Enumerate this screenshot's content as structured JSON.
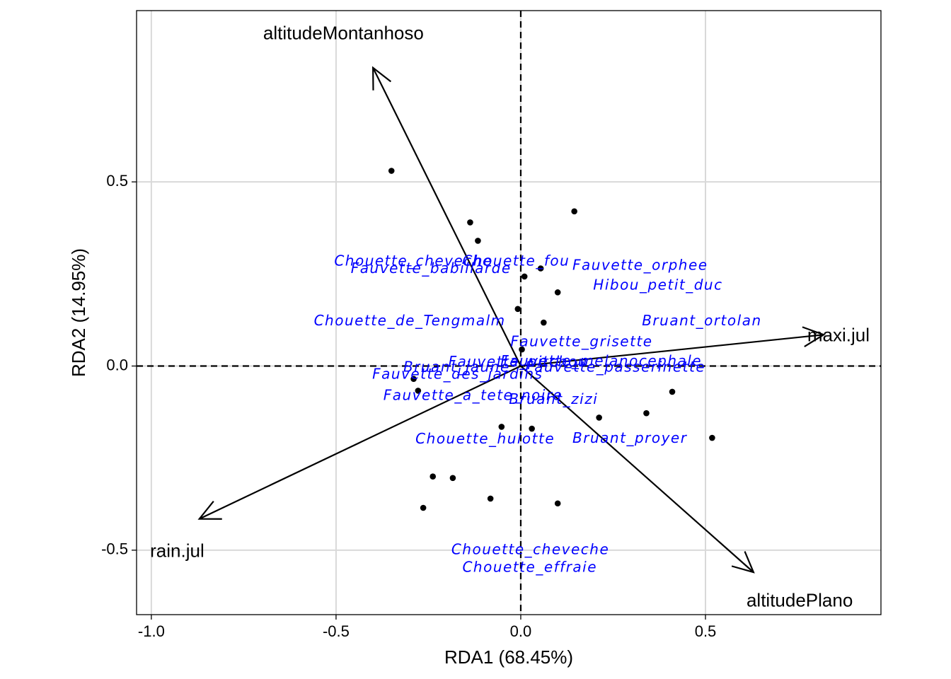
{
  "chart_data": {
    "type": "scatter",
    "title": "",
    "xlabel": "RDA1 (68.45%)",
    "ylabel": "RDA2 (14.95%)",
    "xlim": [
      -1.04,
      0.975
    ],
    "ylim": [
      -0.675,
      0.965
    ],
    "x_ticks": [
      -1.0,
      -0.5,
      0.0,
      0.5
    ],
    "x_tick_labels": [
      "-1.0",
      "-0.5",
      "0.0",
      "0.5"
    ],
    "y_ticks": [
      -0.5,
      0.0,
      0.5
    ],
    "y_tick_labels": [
      "-0.5",
      "0.0",
      "0.5"
    ],
    "grid": true,
    "reference_lines": {
      "x": 0,
      "y": 0,
      "style": "dashed"
    },
    "colors": {
      "points": "#000000",
      "species_labels": "#0000ff",
      "arrows": "#000000",
      "grid": "#d9d9d9"
    },
    "sites": [
      {
        "x": -0.35,
        "y": 0.53
      },
      {
        "x": 0.145,
        "y": 0.42
      },
      {
        "x": -0.137,
        "y": 0.39
      },
      {
        "x": -0.116,
        "y": 0.34
      },
      {
        "x": 0.054,
        "y": 0.265
      },
      {
        "x": 0.01,
        "y": 0.243
      },
      {
        "x": 0.1,
        "y": 0.2
      },
      {
        "x": -0.008,
        "y": 0.155
      },
      {
        "x": 0.062,
        "y": 0.118
      },
      {
        "x": 0.003,
        "y": 0.045
      },
      {
        "x": -0.29,
        "y": -0.035
      },
      {
        "x": -0.278,
        "y": -0.067
      },
      {
        "x": 0.41,
        "y": -0.07
      },
      {
        "x": 0.34,
        "y": -0.128
      },
      {
        "x": 0.212,
        "y": -0.14
      },
      {
        "x": 0.518,
        "y": -0.195
      },
      {
        "x": -0.052,
        "y": -0.165
      },
      {
        "x": 0.03,
        "y": -0.17
      },
      {
        "x": -0.238,
        "y": -0.3
      },
      {
        "x": -0.184,
        "y": -0.304
      },
      {
        "x": -0.082,
        "y": -0.36
      },
      {
        "x": 0.1,
        "y": -0.373
      },
      {
        "x": -0.264,
        "y": -0.385
      }
    ],
    "species": [
      {
        "name": "Chouette_cheveche",
        "x": -0.505,
        "y": 0.283,
        "anchor": "start"
      },
      {
        "name": "Chouette_fou",
        "x": -0.158,
        "y": 0.283,
        "anchor": "start"
      },
      {
        "name": "Fauvette_babillarde",
        "x": -0.46,
        "y": 0.263,
        "anchor": "start"
      },
      {
        "name": "Fauvette_orphee",
        "x": 0.14,
        "y": 0.272,
        "anchor": "start"
      },
      {
        "name": "Hibou_petit_duc",
        "x": 0.196,
        "y": 0.218,
        "anchor": "start"
      },
      {
        "name": "Chouette_de_Tengmalm",
        "x": -0.56,
        "y": 0.121,
        "anchor": "start"
      },
      {
        "name": "Bruant_ortolan",
        "x": 0.328,
        "y": 0.121,
        "anchor": "start"
      },
      {
        "name": "Fauvette_grisette",
        "x": -0.028,
        "y": 0.064,
        "anchor": "start"
      },
      {
        "name": "Fauvette_pitchou",
        "x": -0.196,
        "y": 0.01,
        "anchor": "start"
      },
      {
        "name": "Fauvette_melanocephale",
        "x": -0.055,
        "y": 0.012,
        "anchor": "start"
      },
      {
        "name": "Bruant_jaune",
        "x": -0.318,
        "y": -0.005,
        "anchor": "start"
      },
      {
        "name": "Fauvette_passerinette",
        "x": 0.012,
        "y": -0.005,
        "anchor": "start"
      },
      {
        "name": "Fauvette_des_jardins",
        "x": -0.402,
        "y": -0.024,
        "anchor": "start"
      },
      {
        "name": "Fauvette_a_tete_noire",
        "x": -0.372,
        "y": -0.082,
        "anchor": "start"
      },
      {
        "name": "Bruant_zizi",
        "x": -0.032,
        "y": -0.092,
        "anchor": "start"
      },
      {
        "name": "Chouette_hulotte",
        "x": -0.285,
        "y": -0.2,
        "anchor": "start"
      },
      {
        "name": "Bruant_proyer",
        "x": 0.14,
        "y": -0.198,
        "anchor": "start"
      },
      {
        "name": "Chouette_cheveche",
        "x": -0.188,
        "y": -0.5,
        "anchor": "start"
      },
      {
        "name": "Chouette_effraie",
        "x": -0.158,
        "y": -0.548,
        "anchor": "start"
      }
    ],
    "arrows": [
      {
        "name": "altitudeMontanhoso",
        "x": -0.4,
        "y": 0.81,
        "label_x": -0.48,
        "label_y": 0.9,
        "anchor": "middle"
      },
      {
        "name": "maxi.jul",
        "x": 0.82,
        "y": 0.085,
        "label_x": 0.86,
        "label_y": 0.08,
        "anchor": "middle"
      },
      {
        "name": "rain.jul",
        "x": -0.87,
        "y": -0.415,
        "label_x": -0.93,
        "label_y": -0.505,
        "anchor": "middle"
      },
      {
        "name": "altitudePlano",
        "x": 0.63,
        "y": -0.56,
        "label_x": 0.755,
        "label_y": -0.64,
        "anchor": "middle"
      }
    ]
  }
}
